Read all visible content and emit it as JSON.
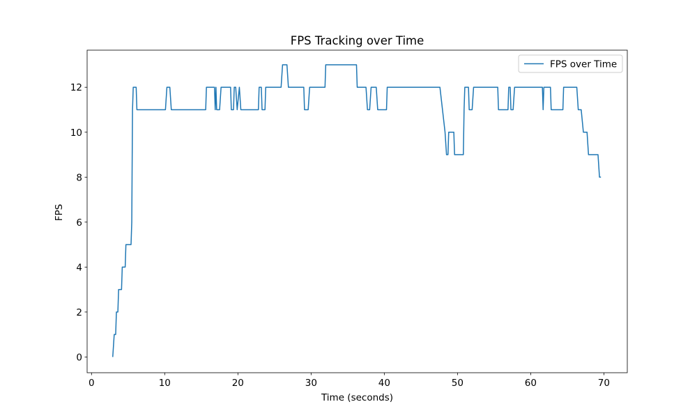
{
  "chart_data": {
    "type": "line",
    "title": "FPS Tracking over Time",
    "xlabel": "Time (seconds)",
    "ylabel": "FPS",
    "xlim": [
      -0.6,
      73.2
    ],
    "ylim": [
      -0.7,
      13.65
    ],
    "xticks": [
      0,
      10,
      20,
      30,
      40,
      50,
      60,
      70
    ],
    "yticks": [
      0,
      2,
      4,
      6,
      8,
      10,
      12
    ],
    "grid": false,
    "legend_position": "top-right",
    "series": [
      {
        "name": "FPS over Time",
        "color": "#1f77b4",
        "points": [
          [
            2.9,
            0
          ],
          [
            3.1,
            1
          ],
          [
            3.3,
            1
          ],
          [
            3.4,
            2
          ],
          [
            3.6,
            2
          ],
          [
            3.7,
            3
          ],
          [
            4.1,
            3
          ],
          [
            4.2,
            4
          ],
          [
            4.6,
            4
          ],
          [
            4.7,
            5
          ],
          [
            5.4,
            5
          ],
          [
            5.5,
            6
          ],
          [
            5.6,
            11
          ],
          [
            5.7,
            12
          ],
          [
            6.1,
            12
          ],
          [
            6.2,
            11
          ],
          [
            10.1,
            11
          ],
          [
            10.3,
            12
          ],
          [
            10.7,
            12
          ],
          [
            10.9,
            11
          ],
          [
            15.6,
            11
          ],
          [
            15.7,
            12
          ],
          [
            16.8,
            12
          ],
          [
            16.9,
            11
          ],
          [
            17.0,
            12
          ],
          [
            17.1,
            11
          ],
          [
            17.5,
            11
          ],
          [
            17.7,
            12
          ],
          [
            18.8,
            12
          ],
          [
            19.0,
            12
          ],
          [
            19.1,
            11
          ],
          [
            19.4,
            11
          ],
          [
            19.5,
            12
          ],
          [
            19.7,
            12
          ],
          [
            19.9,
            11
          ],
          [
            20.2,
            12
          ],
          [
            20.4,
            11
          ],
          [
            22.8,
            11
          ],
          [
            22.9,
            12
          ],
          [
            23.2,
            12
          ],
          [
            23.3,
            11
          ],
          [
            23.7,
            11
          ],
          [
            23.8,
            12
          ],
          [
            25.9,
            12
          ],
          [
            26.1,
            13
          ],
          [
            26.7,
            13
          ],
          [
            26.9,
            12
          ],
          [
            29.0,
            12
          ],
          [
            29.1,
            11
          ],
          [
            29.6,
            11
          ],
          [
            29.8,
            12
          ],
          [
            31.9,
            12
          ],
          [
            32.0,
            13
          ],
          [
            36.2,
            13
          ],
          [
            36.3,
            12
          ],
          [
            37.5,
            12
          ],
          [
            37.7,
            11
          ],
          [
            38.0,
            11
          ],
          [
            38.2,
            12
          ],
          [
            38.9,
            12
          ],
          [
            39.1,
            11
          ],
          [
            40.3,
            11
          ],
          [
            40.4,
            12
          ],
          [
            47.6,
            12
          ],
          [
            48.3,
            10
          ],
          [
            48.5,
            9
          ],
          [
            48.7,
            9
          ],
          [
            48.8,
            10
          ],
          [
            49.5,
            10
          ],
          [
            49.6,
            9
          ],
          [
            50.8,
            9
          ],
          [
            50.9,
            11
          ],
          [
            51.0,
            12
          ],
          [
            51.5,
            12
          ],
          [
            51.6,
            11
          ],
          [
            52.0,
            11
          ],
          [
            52.2,
            12
          ],
          [
            55.5,
            12
          ],
          [
            55.6,
            11
          ],
          [
            56.9,
            11
          ],
          [
            57.0,
            12
          ],
          [
            57.2,
            12
          ],
          [
            57.3,
            11
          ],
          [
            57.6,
            11
          ],
          [
            57.8,
            12
          ],
          [
            61.6,
            12
          ],
          [
            61.7,
            11
          ],
          [
            61.8,
            12
          ],
          [
            62.7,
            12
          ],
          [
            62.8,
            11
          ],
          [
            64.4,
            11
          ],
          [
            64.5,
            12
          ],
          [
            66.3,
            12
          ],
          [
            66.5,
            11
          ],
          [
            66.9,
            11
          ],
          [
            67.2,
            10
          ],
          [
            67.7,
            10
          ],
          [
            67.9,
            9
          ],
          [
            69.2,
            9
          ],
          [
            69.4,
            8
          ],
          [
            69.6,
            8
          ]
        ]
      }
    ]
  }
}
